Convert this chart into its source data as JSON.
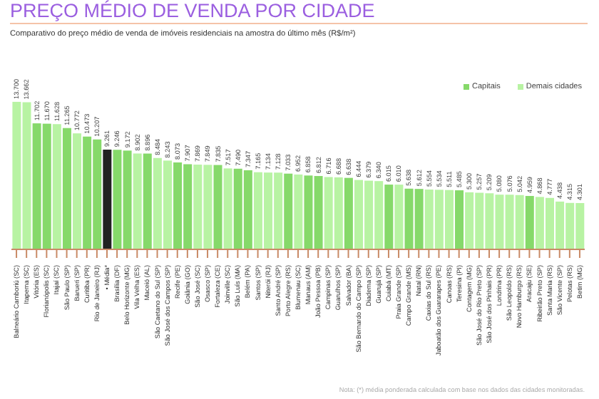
{
  "chart_data": {
    "type": "bar",
    "title": "PREÇO MÉDIO DE VENDA POR CIDADE",
    "subtitle": "Comparativo do preço médio de venda de imóveis residenciais na amostra do último mês (R$/m²)",
    "annotations": [
      "Nota: (*) média ponderada calculada com base nos dados das cidades monitoradas."
    ],
    "stacked": true,
    "legend": "top right",
    "categories": [
      "Balneário Camboriú (SC)",
      "Itapema (SC)",
      "Vitória (ES)",
      "Florianópolis (SC)",
      "Itajaí (SC)",
      "São Paulo (SP)",
      "Barueri (SP)",
      "Curitiba (PR)",
      "Rio de Janeiro (RJ)",
      "• Média*",
      "Brasília (DF)",
      "Belo Horizonte (MG)",
      "Vila Velha (ES)",
      "Maceió (AL)",
      "São Caetano do Sul (SP)",
      "São José dos Campos (SP)",
      "Recife (PE)",
      "Goiânia (GO)",
      "São José (SC)",
      "Osasco (SP)",
      "Fortaleza (CE)",
      "Joinville (SC)",
      "São Luís (MA)",
      "Belém (PA)",
      "Santos (SP)",
      "Niterói (RJ)",
      "Santo André (SP)",
      "Porto Alegre (RS)",
      "Blumenau (SC)",
      "Manaus (AM)",
      "João Pessoa (PB)",
      "Campinas (SP)",
      "Guarulhos (SP)",
      "Salvador (BA)",
      "São Bernardo do Campo (SP)",
      "Diadema (SP)",
      "Guarujá (SP)",
      "Cuiabá (MT)",
      "Praia Grande (SP)",
      "Campo Grande (MS)",
      "Natal (RN)",
      "Caxias do Sul (RS)",
      "Jaboatão dos Guararapes (PE)",
      "Canoas (RS)",
      "Teresina (PI)",
      "Contagem (MG)",
      "São José do Rio Preto (SP)",
      "São José dos Pinhais (PR)",
      "Londrina (PR)",
      "São Leopoldo (RS)",
      "Novo Hamburgo (RS)",
      "Aracaju (SE)",
      "Ribeirão Preto (SP)",
      "Santa Maria (RS)",
      "São Vicente (SP)",
      "Pelotas (RS)",
      "Betim (MG)"
    ],
    "series": [
      {
        "name": "Capitais",
        "color": "#86d96a",
        "values": [
          null,
          null,
          11702,
          11670,
          null,
          11265,
          null,
          10473,
          10207,
          null,
          9246,
          9172,
          null,
          8896,
          null,
          null,
          8073,
          7907,
          null,
          null,
          7835,
          null,
          7490,
          7347,
          null,
          null,
          null,
          7033,
          null,
          6858,
          6812,
          null,
          null,
          6638,
          null,
          null,
          null,
          6015,
          null,
          5638,
          5612,
          null,
          null,
          null,
          5485,
          null,
          null,
          null,
          null,
          null,
          null,
          4959,
          null,
          null,
          null,
          null,
          null
        ],
        "value_labels": [
          null,
          null,
          "11.702",
          "11.670",
          null,
          "11.265",
          null,
          "10.473",
          "10.207",
          null,
          "9.246",
          "9.172",
          null,
          "8.896",
          null,
          null,
          "8.073",
          "7.907",
          null,
          null,
          "7.835",
          null,
          "7.490",
          "7.347",
          null,
          null,
          null,
          "7.033",
          null,
          "6.858",
          "6.812",
          null,
          null,
          "6.638",
          null,
          null,
          null,
          "6.015",
          null,
          "5.638",
          "5.612",
          null,
          null,
          null,
          "5.485",
          null,
          null,
          null,
          null,
          null,
          null,
          "4.959",
          null,
          null,
          null,
          null,
          null
        ]
      },
      {
        "name": "Demais cidades",
        "color": "#b8f3a3",
        "values": [
          13700,
          13662,
          null,
          null,
          11628,
          null,
          10772,
          null,
          null,
          null,
          null,
          null,
          8902,
          null,
          8484,
          8243,
          null,
          null,
          7869,
          7849,
          null,
          7517,
          null,
          null,
          7165,
          7134,
          7128,
          null,
          6952,
          null,
          null,
          6716,
          6688,
          null,
          6444,
          6379,
          6340,
          null,
          6010,
          null,
          null,
          5554,
          5534,
          5511,
          null,
          5300,
          5257,
          5209,
          5080,
          5076,
          5042,
          null,
          4868,
          4777,
          4438,
          4315,
          4301
        ],
        "value_labels": [
          "13.700",
          "13.662",
          null,
          null,
          "11.628",
          null,
          "10.772",
          null,
          null,
          null,
          null,
          null,
          "8.902",
          null,
          "8.484",
          "8.243",
          null,
          null,
          "7.869",
          "7.849",
          null,
          "7.517",
          null,
          null,
          "7.165",
          "7.134",
          "7.128",
          null,
          "6.952",
          null,
          null,
          "6.716",
          "6.688",
          null,
          "6.444",
          "6.379",
          "6.340",
          null,
          "6.010",
          null,
          null,
          "5.554",
          "5.534",
          "5.511",
          null,
          "5.300",
          "5.257",
          "5.209",
          "5.080",
          "5.076",
          "5.042",
          null,
          "4.868",
          "4.777",
          "4.438",
          "4.315",
          "4.301"
        ]
      },
      {
        "color": "#222222",
        "values": [
          null,
          null,
          null,
          null,
          null,
          null,
          null,
          null,
          null,
          9261,
          null,
          null,
          null,
          null,
          null,
          null,
          null,
          null,
          null,
          null,
          null,
          null,
          null,
          null,
          null,
          null,
          null,
          null,
          null,
          null,
          null,
          null,
          null,
          null,
          null,
          null,
          null,
          null,
          null,
          null,
          null,
          null,
          null,
          null,
          null,
          null,
          null,
          null,
          null,
          null,
          null,
          null,
          null,
          null,
          null,
          null,
          null
        ],
        "value_labels": [
          null,
          null,
          null,
          null,
          null,
          null,
          null,
          null,
          null,
          "9.261",
          null,
          null,
          null,
          null,
          null,
          null,
          null,
          null,
          null,
          null,
          null,
          null,
          null,
          null,
          null,
          null,
          null,
          null,
          null,
          null,
          null,
          null,
          null,
          null,
          null,
          null,
          null,
          null,
          null,
          null,
          null,
          null,
          null,
          null,
          null,
          null,
          null,
          null,
          null,
          null,
          null,
          null,
          null,
          null,
          null,
          null,
          null
        ]
      }
    ]
  }
}
